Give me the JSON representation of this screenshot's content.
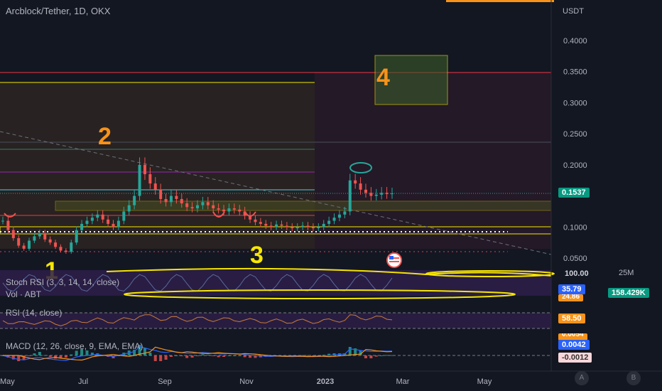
{
  "header": {
    "symbol": "Arcblock/Tether, 1D, OKX"
  },
  "chart_data": {
    "type": "candlestick",
    "quote_currency": "USDT",
    "y_ticks": [
      "0.4000",
      "0.3500",
      "0.3000",
      "0.2500",
      "0.2000",
      "0.1000",
      "0.0500"
    ],
    "x_ticks": [
      "May",
      "Jul",
      "Sep",
      "Nov",
      "2023",
      "Mar",
      "May"
    ],
    "last_price": "0.1537",
    "annotations": [
      "1",
      "2",
      "3",
      "4"
    ],
    "close_series": [
      0.11,
      0.095,
      0.082,
      0.07,
      0.065,
      0.078,
      0.085,
      0.09,
      0.08,
      0.075,
      0.068,
      0.062,
      0.06,
      0.075,
      0.095,
      0.105,
      0.11,
      0.115,
      0.12,
      0.112,
      0.105,
      0.1,
      0.11,
      0.125,
      0.135,
      0.15,
      0.2,
      0.185,
      0.17,
      0.16,
      0.145,
      0.14,
      0.15,
      0.145,
      0.138,
      0.132,
      0.13,
      0.135,
      0.14,
      0.135,
      0.13,
      0.128,
      0.125,
      0.13,
      0.128,
      0.125,
      0.118,
      0.112,
      0.108,
      0.105,
      0.102,
      0.1,
      0.104,
      0.102,
      0.1,
      0.098,
      0.1,
      0.102,
      0.1,
      0.098,
      0.1,
      0.105,
      0.11,
      0.115,
      0.12,
      0.125,
      0.175,
      0.17,
      0.16,
      0.155,
      0.15,
      0.152,
      0.155,
      0.153,
      0.154
    ]
  },
  "indicators": {
    "stoch_rsi": {
      "label": "Stoch RSI (3, 3, 14, 14, close)",
      "top_value": "100.00",
      "value": "35.79",
      "value2": "24.86"
    },
    "volume": {
      "label": "Vol · ABT",
      "axis_value": "25M",
      "value": "158.429K"
    },
    "rsi": {
      "label": "RSI (14, close)",
      "value": "58.50"
    },
    "macd": {
      "label": "MACD (12, 26, close, 9, EMA, EMA)",
      "value1": "0.0054",
      "value2": "0.0042",
      "value3": "-0.0012"
    }
  },
  "corner_buttons": {
    "a": "A",
    "b": "B"
  },
  "colors": {
    "background": "#131722",
    "up": "#26a69a",
    "down": "#ef5350",
    "yellow": "#f7e600",
    "orange": "#f7931a",
    "red_line": "#f23645",
    "purple": "#9c27b0",
    "cyan": "#4dd0e1",
    "last_badge": "#089981",
    "blue_badge": "#2962ff"
  }
}
